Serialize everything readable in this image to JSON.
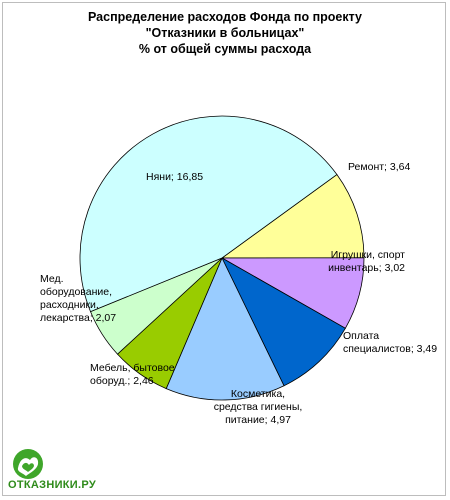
{
  "chart_data": {
    "type": "pie",
    "title_lines": [
      "Распределение расходов Фонда по проекту",
      "\"Отказники в больницах\"",
      "% от общей суммы расхода"
    ],
    "slices": [
      {
        "label_lines": [
          "Ремонт; 3,64"
        ],
        "value": 3.64,
        "color": "#ffff99"
      },
      {
        "label_lines": [
          "Игрушки, спорт",
          "инвентарь; 3,02"
        ],
        "value": 3.02,
        "color": "#cc99ff"
      },
      {
        "label_lines": [
          "Оплата",
          "специалистов; 3,49"
        ],
        "value": 3.49,
        "color": "#0066cc"
      },
      {
        "label_lines": [
          "Косметика,",
          "средства гигиены,",
          "питание; 4,97"
        ],
        "value": 4.97,
        "color": "#99ccff"
      },
      {
        "label_lines": [
          "Мебель, бытовое",
          "оборуд.; 2,46"
        ],
        "value": 2.46,
        "color": "#99cc00"
      },
      {
        "label_lines": [
          "Мед.",
          "оборудование,",
          "расходники,",
          "лекарства; 2,07"
        ],
        "value": 2.07,
        "color": "#ccffcc"
      },
      {
        "label_lines": [
          "Няни; 16,85"
        ],
        "value": 16.85,
        "color": "#ccffff"
      }
    ],
    "start_angle_deg": -36
  },
  "logo": {
    "text": "ОТКАЗНИКИ.РУ",
    "icon": "hands-heart-logo",
    "color": "#2e8b1a"
  }
}
